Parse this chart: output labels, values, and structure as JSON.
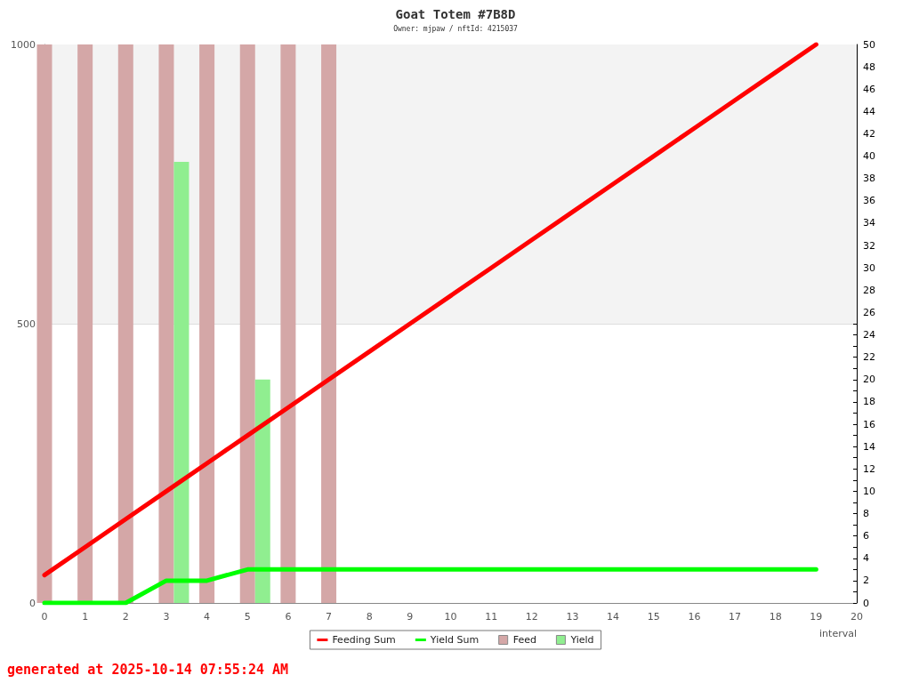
{
  "chart_data": {
    "type": "line",
    "title": "Goat Totem #7B8D",
    "subtitle": "Owner: mjpaw / nftId: 4215037",
    "xlabel": "interval",
    "annotations": [
      "generated at 2025-10-14 07:55:24 AM"
    ],
    "xlim": [
      0,
      20
    ],
    "xticks": [
      0,
      1,
      2,
      3,
      4,
      5,
      6,
      7,
      8,
      9,
      10,
      11,
      12,
      13,
      14,
      15,
      16,
      17,
      18,
      19,
      20
    ],
    "ylim": [
      0,
      1000
    ],
    "yticks": [
      0,
      500,
      1000
    ],
    "y2lim": [
      0,
      50
    ],
    "y2ticks": [
      0,
      {
        "value": 1,
        "label": null
      },
      2,
      {
        "value": 3,
        "label": null
      },
      4,
      {
        "value": 5,
        "label": null
      },
      6,
      {
        "value": 7,
        "label": null
      },
      8,
      {
        "value": 9,
        "label": null
      },
      10,
      {
        "value": 11,
        "label": null
      },
      12,
      {
        "value": 13,
        "label": null
      },
      14,
      {
        "value": 15,
        "label": null
      },
      16,
      {
        "value": 17,
        "label": null
      },
      18,
      {
        "value": 19,
        "label": null
      },
      20,
      {
        "value": 21,
        "label": null
      },
      22,
      {
        "value": 23,
        "label": null
      },
      24,
      {
        "value": 25,
        "label": null
      },
      26,
      {
        "value": 27,
        "label": null
      },
      28,
      {
        "value": 29,
        "label": null
      },
      30,
      {
        "value": 31,
        "label": null
      },
      32,
      {
        "value": 33,
        "label": null
      },
      34,
      {
        "value": 35,
        "label": null
      },
      36,
      {
        "value": 37,
        "label": null
      },
      38,
      {
        "value": 39,
        "label": null
      },
      40,
      {
        "value": 41,
        "label": null
      },
      42,
      {
        "value": 43,
        "label": null
      },
      44,
      {
        "value": 45,
        "label": null
      },
      46,
      {
        "value": 47,
        "label": null
      },
      48,
      {
        "value": 49,
        "label": null
      },
      50
    ],
    "grid": "y",
    "legend": "bottom",
    "marker": "none",
    "line_style": "solid",
    "bands": [
      {
        "axis": "y",
        "from": 500,
        "to": 1000,
        "color": "#f3f3f3"
      }
    ],
    "series": [
      {
        "name": "Feeding Sum",
        "color": "#ff0000",
        "x": [
          0,
          1,
          2,
          3,
          4,
          5,
          6,
          7,
          8,
          9,
          10,
          11,
          12,
          13,
          14,
          15,
          16,
          17,
          18,
          19
        ],
        "values": [
          50,
          100,
          150,
          200,
          250,
          300,
          350,
          400,
          450,
          500,
          550,
          600,
          650,
          700,
          750,
          800,
          850,
          900,
          950,
          1000
        ]
      },
      {
        "name": "Yield Sum",
        "color": "#00ff00",
        "x": [
          0,
          1,
          2,
          3,
          4,
          5,
          6,
          7,
          8,
          9,
          10,
          11,
          12,
          13,
          14,
          15,
          16,
          17,
          18,
          19
        ],
        "values": [
          0,
          0,
          0,
          40,
          40,
          60,
          60,
          60,
          60,
          60,
          60,
          60,
          60,
          60,
          60,
          60,
          60,
          60,
          60,
          60
        ]
      },
      {
        "name": "Feed",
        "type": "bar",
        "axis": "y2",
        "color": "#d4a7a7",
        "x": [
          0,
          1,
          2,
          3,
          4,
          5,
          6,
          7
        ],
        "values": [
          50,
          50,
          50,
          50,
          50,
          50,
          50,
          50
        ]
      },
      {
        "name": "Yield",
        "type": "bar",
        "axis": "y2",
        "color": "#90ee90",
        "x": [
          3,
          5
        ],
        "values": [
          39.5,
          20
        ]
      }
    ]
  }
}
